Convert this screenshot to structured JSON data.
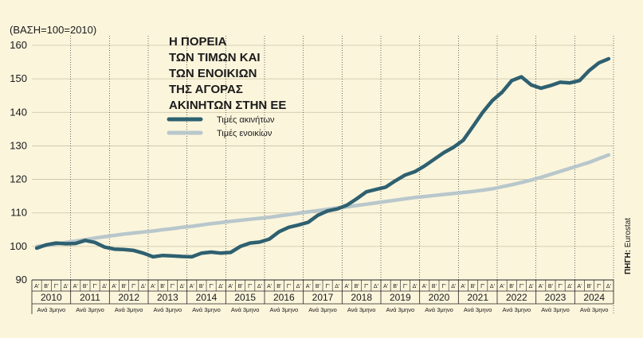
{
  "chart_data": {
    "type": "line",
    "title_lines": [
      "Η ΠΟΡΕΙΑ",
      "ΤΩΝ ΤΙΜΩΝ ΚΑΙ",
      "ΤΩΝ ΕΝΟΙΚΙΩΝ",
      "ΤΗΣ ΑΓΟΡΑΣ",
      "ΑΚΙΝΗΤΩΝ ΣΤΗΝ ΕΕ"
    ],
    "ylabel": "(ΒΑΣΗ=100=2010)",
    "ylim": [
      90,
      160
    ],
    "yticks": [
      90,
      100,
      110,
      120,
      130,
      140,
      150,
      160
    ],
    "years": [
      "2010",
      "2011",
      "2012",
      "2013",
      "2014",
      "2015",
      "2016",
      "2017",
      "2018",
      "2019",
      "2020",
      "2021",
      "2022",
      "2023",
      "2024"
    ],
    "quarter_labels": [
      "Α'",
      "Β'",
      "Γ'",
      "Δ'"
    ],
    "period_sublabel": "Ανά 3μηνο",
    "source_label": "ΠΗΓΗ:",
    "source_name": "Eurostat",
    "series": [
      {
        "name": "Τιμές ακινήτων",
        "color": "#2e6070",
        "values": [
          99.5,
          100.5,
          101.0,
          100.8,
          100.9,
          101.8,
          101.2,
          99.8,
          99.2,
          99.1,
          98.8,
          98.0,
          96.9,
          97.3,
          97.2,
          97.0,
          96.9,
          98.0,
          98.3,
          98.0,
          98.2,
          100.0,
          101.0,
          101.3,
          102.2,
          104.4,
          105.7,
          106.4,
          107.2,
          109.3,
          110.6,
          111.2,
          112.3,
          114.2,
          116.3,
          117.0,
          117.7,
          119.6,
          121.3,
          122.3,
          124.0,
          126.0,
          128.0,
          129.6,
          131.7,
          135.8,
          140.0,
          143.5,
          146.0,
          149.5,
          150.6,
          148.2,
          147.2,
          148.0,
          149.0,
          148.8,
          149.5,
          152.5,
          154.8,
          156.0
        ]
      },
      {
        "name": "Τιμές ενοικίων",
        "color": "#b8c7cb",
        "values": [
          100.0,
          100.3,
          100.7,
          101.2,
          101.6,
          102.0,
          102.5,
          102.9,
          103.3,
          103.7,
          104.0,
          104.3,
          104.6,
          105.0,
          105.3,
          105.7,
          106.0,
          106.4,
          106.8,
          107.1,
          107.5,
          107.8,
          108.1,
          108.4,
          108.7,
          109.1,
          109.5,
          109.9,
          110.3,
          110.7,
          111.1,
          111.5,
          111.8,
          112.2,
          112.6,
          113.0,
          113.4,
          113.8,
          114.2,
          114.6,
          114.9,
          115.2,
          115.5,
          115.8,
          116.1,
          116.4,
          116.8,
          117.2,
          117.8,
          118.4,
          119.1,
          119.8,
          120.6,
          121.5,
          122.4,
          123.3,
          124.2,
          125.1,
          126.2,
          127.3
        ]
      }
    ]
  }
}
